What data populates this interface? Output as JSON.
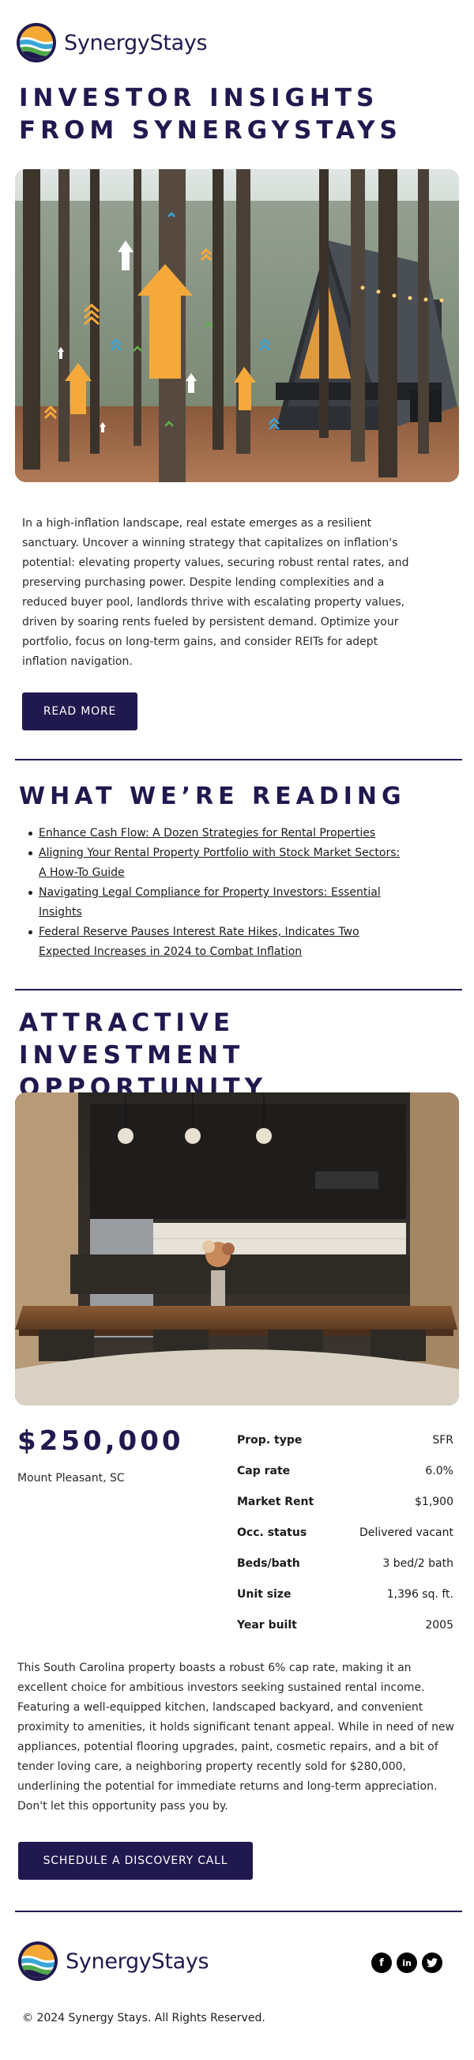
{
  "brand": {
    "name": "SynergyStays"
  },
  "hero": {
    "title": "INVESTOR INSIGHTS FROM SYNERGYSTAYS"
  },
  "intro": {
    "text": "In a high-inflation landscape, real estate emerges as a resilient sanctuary. Uncover a winning strategy that capitalizes on inflation's potential: elevating property values, securing robust rental rates, and preserving purchasing power. Despite lending complexities and a reduced buyer pool, landlords thrive with escalating property values, driven by soaring rents fueled by persistent demand. Optimize your portfolio, focus on long-term gains, and consider REITs for adept inflation navigation.",
    "button_label": "READ MORE"
  },
  "reading": {
    "title": "WHAT WE’RE READING",
    "items": [
      "Enhance Cash Flow: A Dozen Strategies for Rental Properties",
      "Aligning Your Rental Property Portfolio with Stock Market Sectors: A How-To Guide",
      "Navigating Legal Compliance for Property Investors: Essential Insights",
      "Federal Reserve Pauses Interest Rate Hikes, Indicates Two Expected Increases in 2024 to Combat Inflation"
    ]
  },
  "opportunity": {
    "title": "ATTRACTIVE INVESTMENT OPPORTUNITY",
    "price": "$250,000",
    "location": "Mount Pleasant, SC",
    "specs": [
      {
        "label": "Prop. type",
        "value": "SFR"
      },
      {
        "label": "Cap rate",
        "value": "6.0%"
      },
      {
        "label": "Market Rent",
        "value": "$1,900"
      },
      {
        "label": "Occ. status",
        "value": "Delivered vacant"
      },
      {
        "label": "Beds/bath",
        "value": "3 bed/2 bath"
      },
      {
        "label": "Unit size",
        "value": "1,396 sq. ft."
      },
      {
        "label": "Year built",
        "value": "2005"
      }
    ],
    "description": "This South Carolina property boasts a robust 6% cap rate, making it an excellent choice for ambitious investors seeking sustained rental income. Featuring a well-equipped kitchen, landscaped backyard, and convenient proximity to amenities, it holds significant tenant appeal. While in need of new appliances, potential flooring upgrades, paint, cosmetic repairs, and a bit of tender loving care, a neighboring property recently sold for $280,000, underlining the potential for immediate returns and long-term appreciation. Don't let this opportunity pass you by.",
    "button_label": "SCHEDULE A DISCOVERY CALL"
  },
  "footer": {
    "social": [
      {
        "icon": "facebook-icon",
        "glyph": "f"
      },
      {
        "icon": "linkedin-icon",
        "glyph": "in"
      },
      {
        "icon": "twitter-icon",
        "glyph": "t"
      }
    ],
    "copyright": "© 2024 Synergy Stays. All Rights Reserved."
  },
  "colors": {
    "brand_navy": "#20194f",
    "accent_orange": "#f4a93a",
    "accent_blue": "#3aa6d8"
  }
}
